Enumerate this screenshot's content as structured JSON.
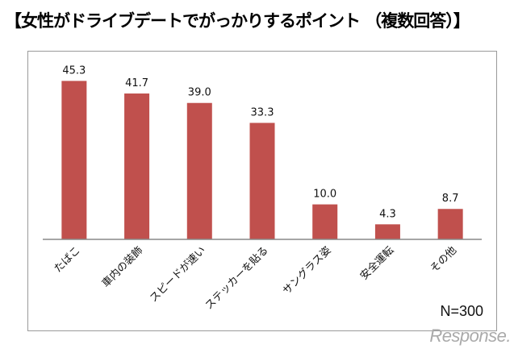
{
  "chart_data": {
    "type": "bar",
    "title": "【女性がドライブデートでがっかりするポイント （複数回答）】",
    "categories": [
      "たばこ",
      "車内の装飾",
      "スピードが速い",
      "ステッカーを貼る",
      "サングラス姿",
      "安全運転",
      "その他"
    ],
    "values": [
      45.3,
      41.7,
      39.0,
      33.3,
      10.0,
      4.3,
      8.7
    ],
    "value_labels": [
      "45.3",
      "41.7",
      "39.0",
      "33.3",
      "10.0",
      "4.3",
      "8.7"
    ],
    "ylim": [
      0,
      50
    ],
    "grid": false,
    "bar_color": "#c0504d",
    "annotation": "N=300"
  },
  "watermark": "Response."
}
